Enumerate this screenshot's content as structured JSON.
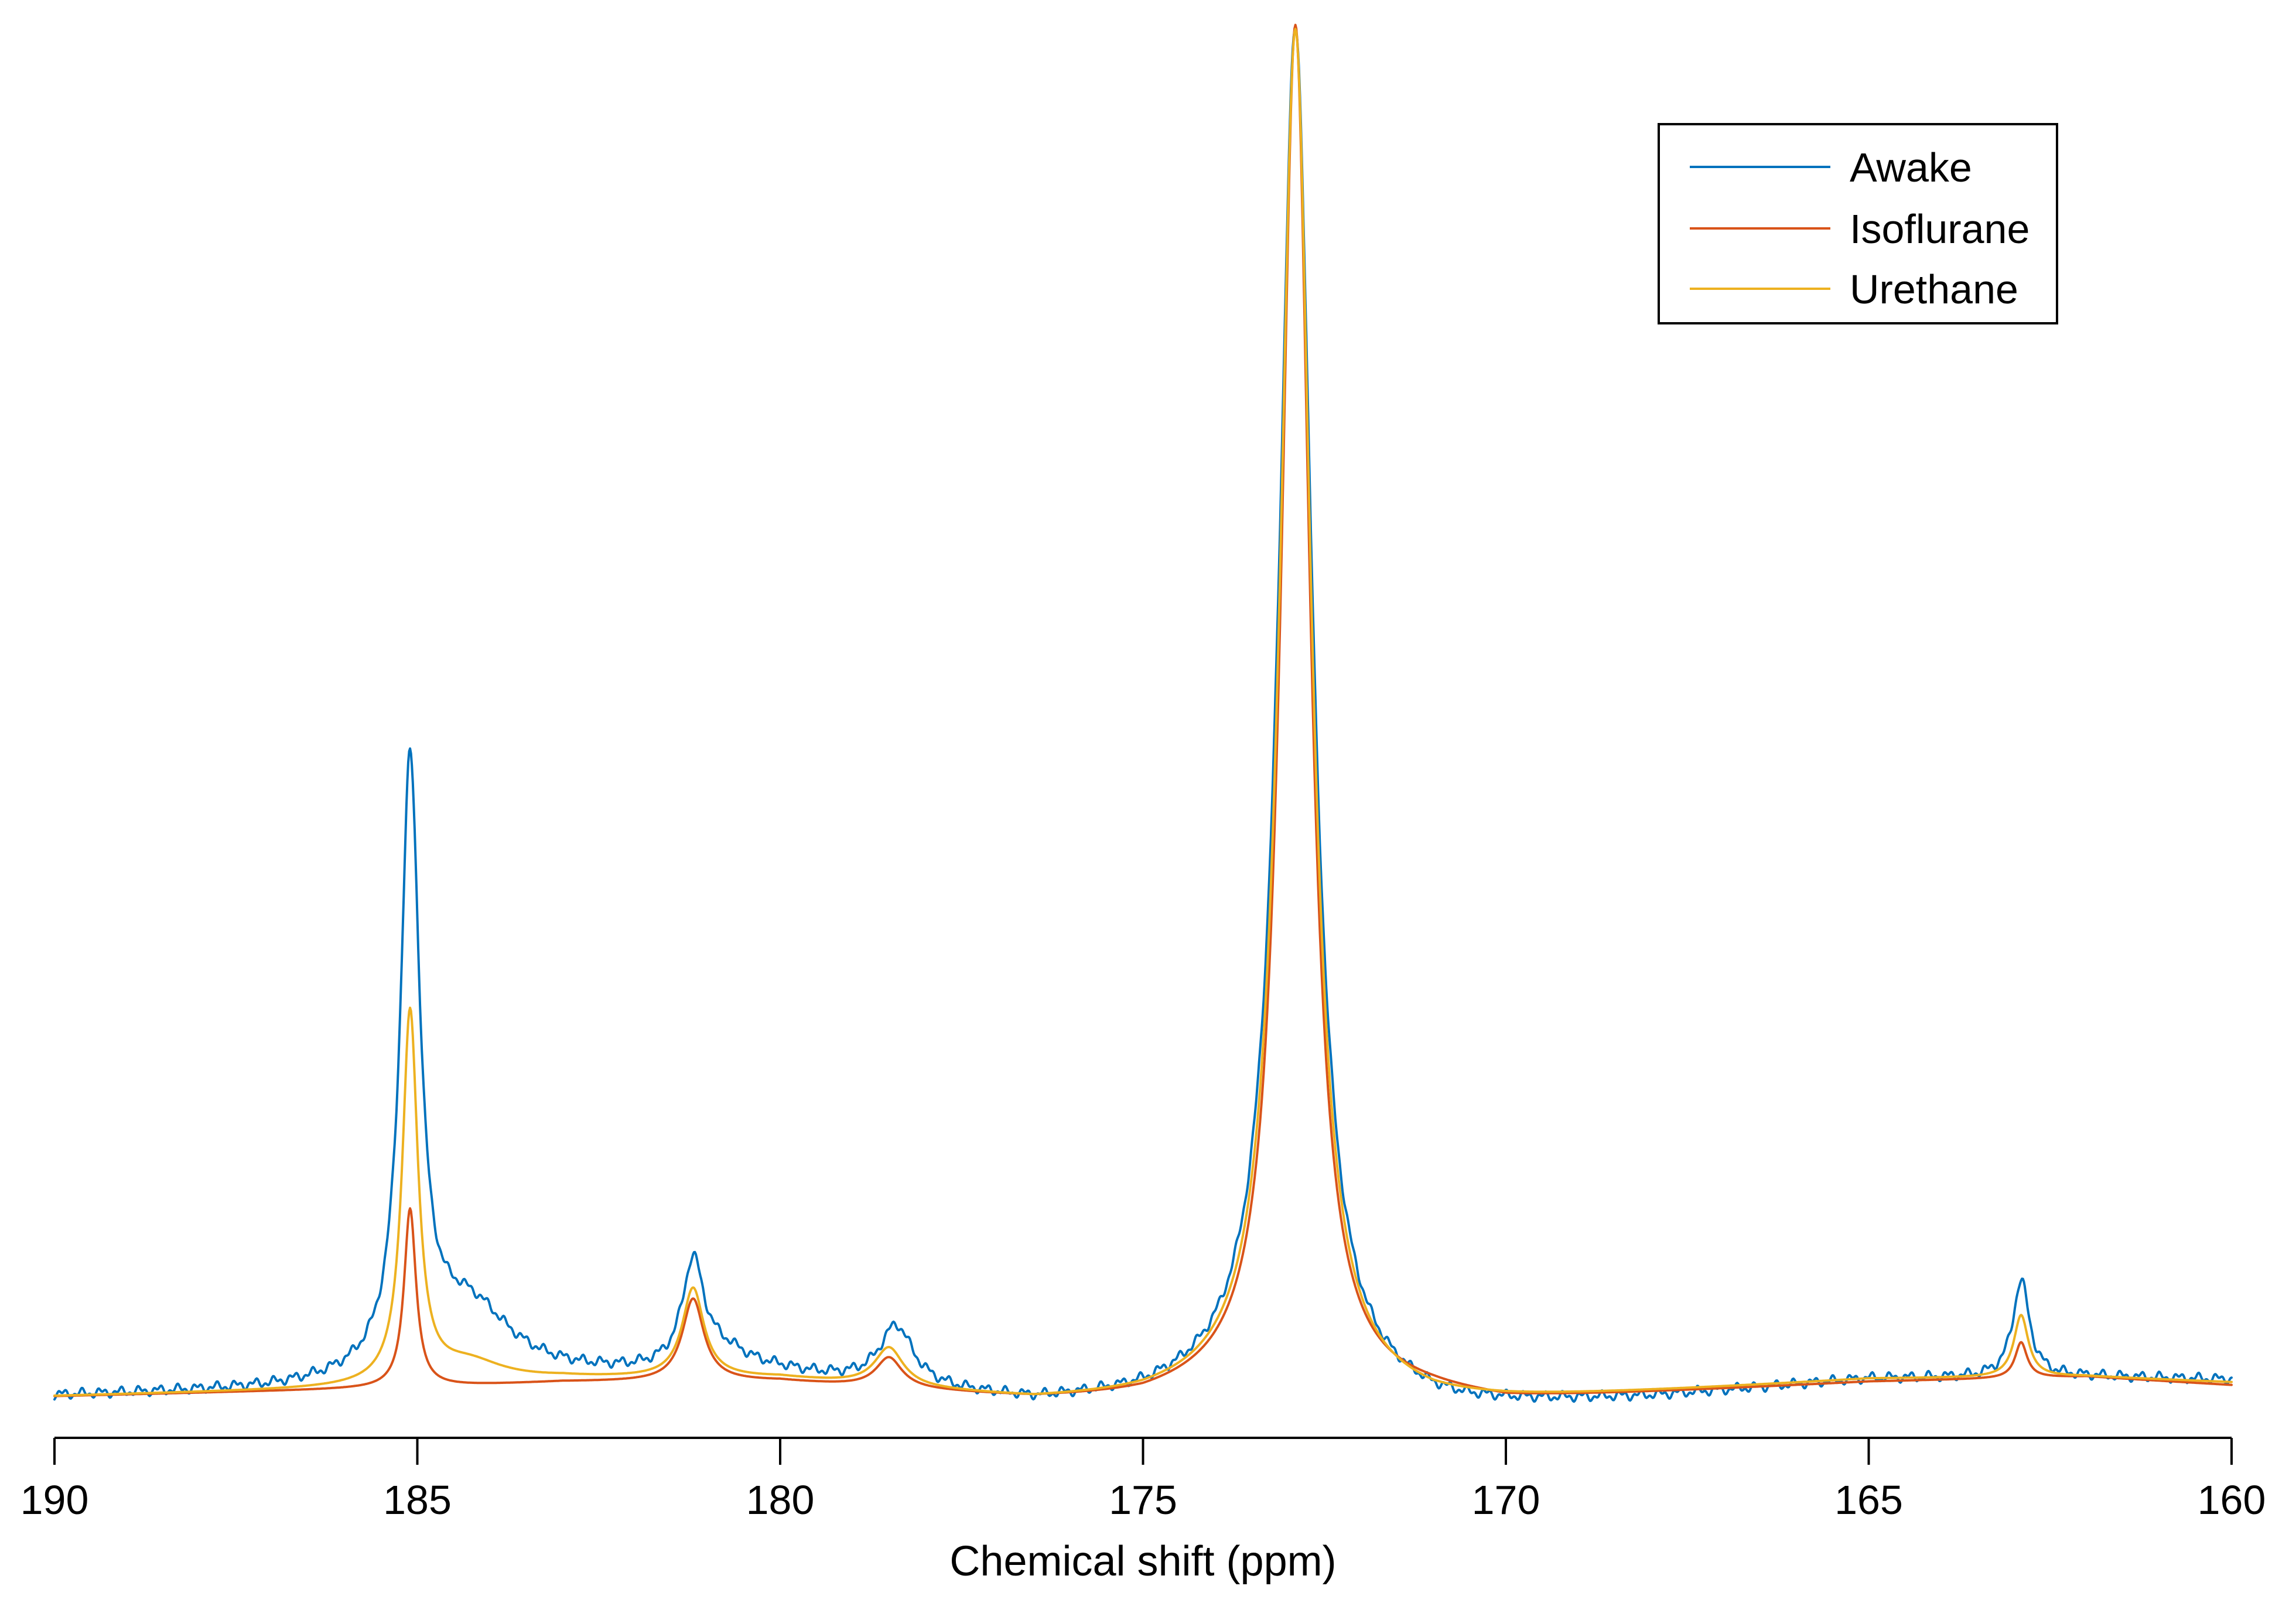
{
  "chart_data": {
    "type": "line",
    "xlabel": "Chemical shift (ppm)",
    "ylabel": "",
    "xlim": [
      190,
      160
    ],
    "x_reversed": true,
    "ylim": [
      -0.03,
      1.0
    ],
    "xticks": [
      190,
      185,
      180,
      175,
      170,
      165,
      160
    ],
    "y_axis_visible": false,
    "grid": false,
    "legend_position": "top-right",
    "legend": [
      "Awake",
      "Isoflurane",
      "Urethane"
    ],
    "series": [
      {
        "name": "Awake",
        "color": "#0072bd",
        "baseline": [
          [
            190,
            0.0
          ],
          [
            187,
            0.004
          ],
          [
            184,
            0.013
          ],
          [
            180,
            0.014
          ],
          [
            176.5,
            -0.006
          ],
          [
            175,
            -0.004
          ],
          [
            173.5,
            0.004
          ],
          [
            171,
            -0.01
          ],
          [
            170.5,
            -0.01
          ],
          [
            168,
            -0.002
          ],
          [
            165,
            0.012
          ],
          [
            162,
            0.014
          ],
          [
            160,
            0.012
          ]
        ],
        "peaks": [
          {
            "x": 185.1,
            "y": 0.435,
            "width": 0.16
          },
          {
            "x": 184.3,
            "y": 0.05,
            "width": 0.7
          },
          {
            "x": 181.2,
            "y": 0.075,
            "width": 0.18
          },
          {
            "x": 180.8,
            "y": 0.015,
            "width": 0.5
          },
          {
            "x": 178.4,
            "y": 0.043,
            "width": 0.28
          },
          {
            "x": 172.9,
            "y": 0.99,
            "width": 0.28
          },
          {
            "x": 162.9,
            "y": 0.07,
            "width": 0.14
          }
        ],
        "noise": 0.004
      },
      {
        "name": "Isoflurane",
        "color": "#d95319",
        "baseline": [
          [
            190,
            0.0
          ],
          [
            185,
            0.006
          ],
          [
            183,
            0.01
          ],
          [
            180,
            0.01
          ],
          [
            176.5,
            -0.003
          ],
          [
            175,
            -0.003
          ],
          [
            173.5,
            0.006
          ],
          [
            171,
            0.0
          ],
          [
            170,
            -0.004
          ],
          [
            165,
            0.01
          ],
          [
            162,
            0.014
          ],
          [
            160,
            0.008
          ]
        ],
        "peaks": [
          {
            "x": 185.1,
            "y": 0.13,
            "width": 0.1
          },
          {
            "x": 181.2,
            "y": 0.06,
            "width": 0.18
          },
          {
            "x": 178.5,
            "y": 0.022,
            "width": 0.22
          },
          {
            "x": 172.9,
            "y": 0.99,
            "width": 0.24
          },
          {
            "x": 162.9,
            "y": 0.026,
            "width": 0.1
          }
        ],
        "noise": 0.0
      },
      {
        "name": "Urethane",
        "color": "#edb120",
        "baseline": [
          [
            190,
            0.0
          ],
          [
            185,
            0.006
          ],
          [
            183,
            0.012
          ],
          [
            180,
            0.012
          ],
          [
            176.5,
            -0.004
          ],
          [
            175,
            -0.003
          ],
          [
            173.5,
            0.004
          ],
          [
            171,
            -0.006
          ],
          [
            170,
            -0.004
          ],
          [
            165,
            0.012
          ],
          [
            162,
            0.014
          ],
          [
            160,
            0.01
          ]
        ],
        "peaks": [
          {
            "x": 185.1,
            "y": 0.27,
            "width": 0.13
          },
          {
            "x": 184.3,
            "y": 0.015,
            "width": 0.6
          },
          {
            "x": 181.2,
            "y": 0.065,
            "width": 0.18
          },
          {
            "x": 178.5,
            "y": 0.028,
            "width": 0.24
          },
          {
            "x": 172.9,
            "y": 0.99,
            "width": 0.26
          },
          {
            "x": 162.9,
            "y": 0.045,
            "width": 0.12
          }
        ],
        "noise": 0.0
      }
    ]
  }
}
